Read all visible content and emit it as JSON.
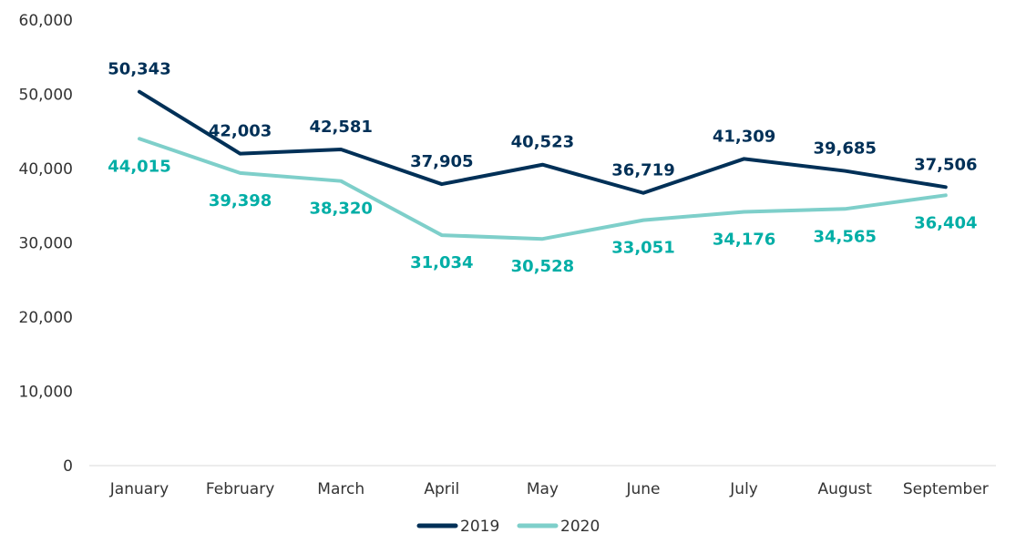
{
  "chart_data": {
    "type": "line",
    "title": "",
    "xlabel": "",
    "ylabel": "",
    "categories": [
      "January",
      "February",
      "March",
      "April",
      "May",
      "June",
      "July",
      "August",
      "September"
    ],
    "ylim": [
      0,
      60000
    ],
    "yticks": [
      0,
      10000,
      20000,
      30000,
      40000,
      50000,
      60000
    ],
    "ytick_labels": [
      "0",
      "10,000",
      "20,000",
      "30,000",
      "40,000",
      "50,000",
      "60,000"
    ],
    "grid": false,
    "legend_position": "bottom",
    "series": [
      {
        "name": "2019",
        "line_color": "#003057",
        "label_color": "#003057",
        "label_position": "above",
        "values": [
          50343,
          42003,
          42581,
          37905,
          40523,
          36719,
          41309,
          39685,
          37506
        ],
        "labels": [
          "50,343",
          "42,003",
          "42,581",
          "37,905",
          "40,523",
          "36,719",
          "41,309",
          "39,685",
          "37,506"
        ]
      },
      {
        "name": "2020",
        "line_color": "#7ecfca",
        "label_color": "#00aea6",
        "label_position": "below",
        "values": [
          44015,
          39398,
          38320,
          31034,
          30528,
          33051,
          34176,
          34565,
          36404
        ],
        "labels": [
          "44,015",
          "39,398",
          "38,320",
          "31,034",
          "30,528",
          "33,051",
          "34,176",
          "34,565",
          "36,404"
        ]
      }
    ]
  }
}
